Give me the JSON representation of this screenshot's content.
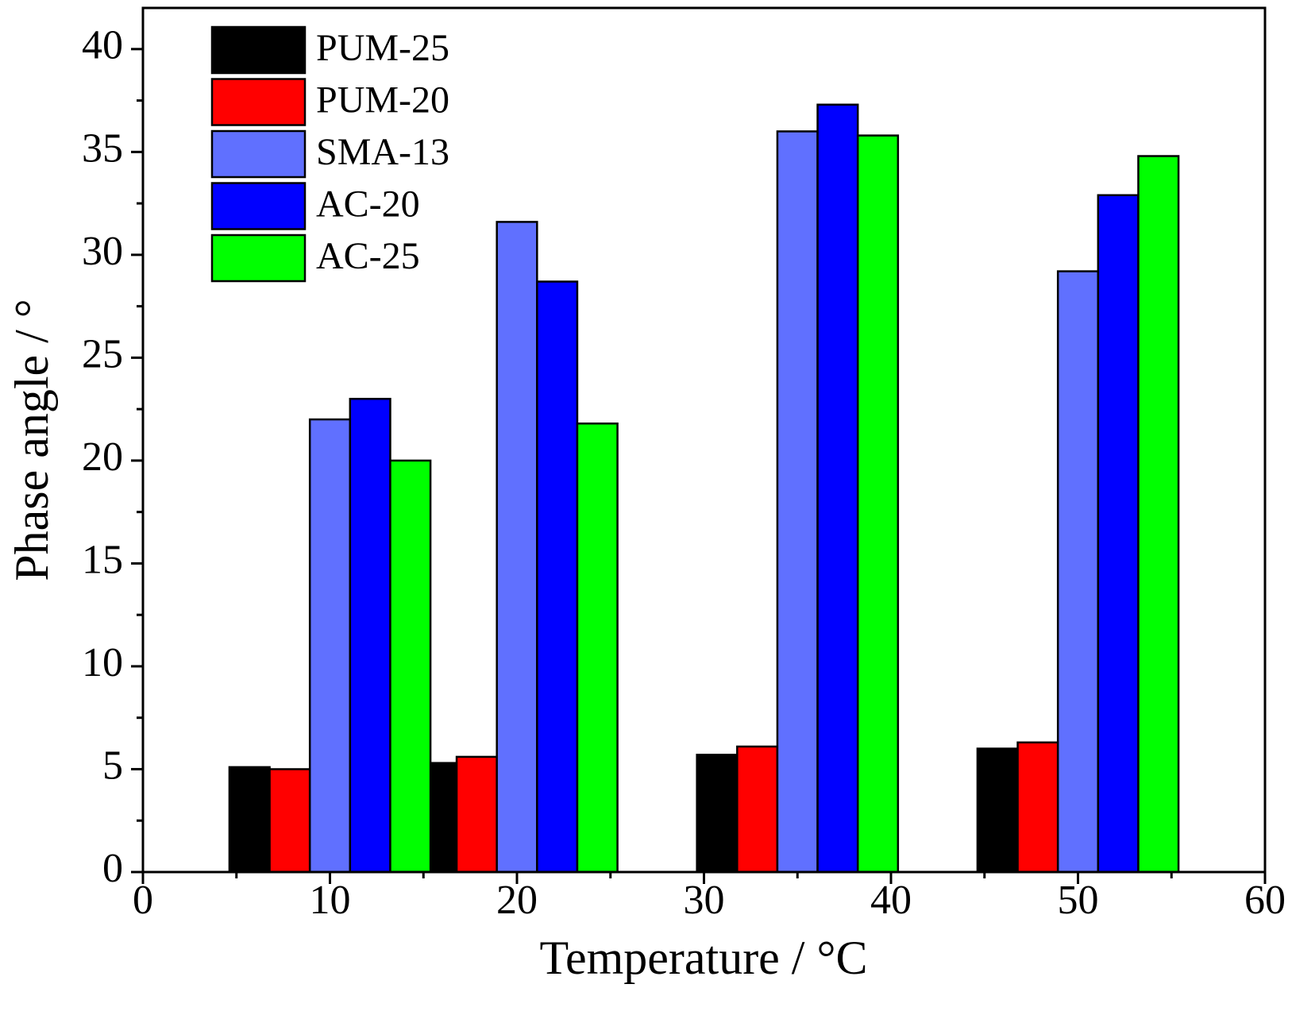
{
  "chart_data": {
    "type": "bar",
    "x_label": "Temperature / °C",
    "y_label": "Phase angle / °",
    "x": [
      10,
      20,
      35,
      50
    ],
    "series": [
      {
        "name": "PUM-25",
        "color": "#000000",
        "values": [
          5.1,
          5.3,
          5.7,
          6.0
        ]
      },
      {
        "name": "PUM-20",
        "color": "#ff0000",
        "values": [
          5.0,
          5.6,
          6.1,
          6.3
        ]
      },
      {
        "name": "SMA-13",
        "color": "#6070ff",
        "values": [
          22.0,
          31.6,
          36.0,
          29.2
        ]
      },
      {
        "name": "AC-20",
        "color": "#0000ff",
        "values": [
          23.0,
          28.7,
          37.3,
          32.9
        ]
      },
      {
        "name": "AC-25",
        "color": "#00ff00",
        "values": [
          20.0,
          21.8,
          35.8,
          34.8
        ]
      }
    ],
    "xlim": [
      0,
      60
    ],
    "xticks": [
      0,
      10,
      20,
      30,
      40,
      50,
      60
    ],
    "ylim": [
      0,
      42
    ],
    "yticks": [
      0,
      5,
      10,
      15,
      20,
      25,
      30,
      35,
      40
    ],
    "legend": "upper left"
  }
}
